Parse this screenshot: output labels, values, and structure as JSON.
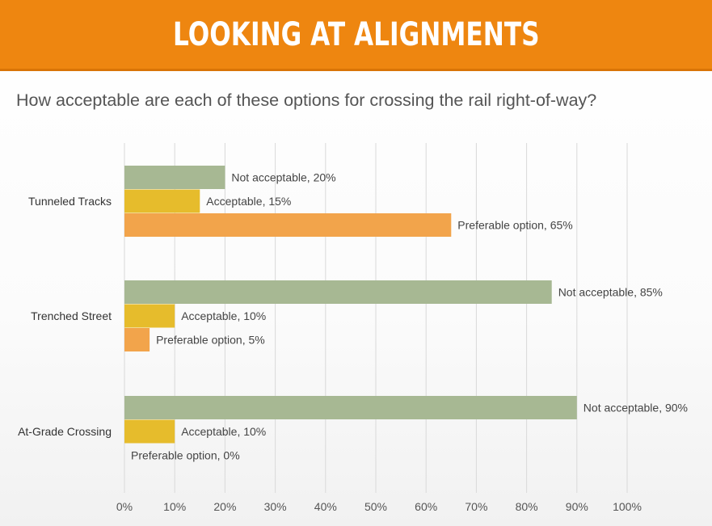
{
  "header": {
    "title": "LOOKING AT ALIGNMENTS"
  },
  "question": "How acceptable are each of these options for crossing the rail right-of-way?",
  "colors": {
    "banner": "#ee8610",
    "not_acceptable": "#a7b893",
    "acceptable": "#e6bc2c",
    "preferable": "#f2a44b",
    "grid": "#d9d9d9"
  },
  "chart_data": {
    "type": "bar",
    "orientation": "horizontal",
    "title": "How acceptable are each of these options for crossing the rail right-of-way?",
    "categories": [
      "Tunneled Tracks",
      "Trenched Street",
      "At-Grade Crossing"
    ],
    "series": [
      {
        "name": "Not acceptable",
        "values": [
          20,
          85,
          90
        ],
        "labels": [
          "Not acceptable, 20%",
          "Not acceptable, 85%",
          "Not acceptable, 90%"
        ]
      },
      {
        "name": "Acceptable",
        "values": [
          15,
          10,
          10
        ],
        "labels": [
          "Acceptable, 15%",
          "Acceptable, 10%",
          "Acceptable, 10%"
        ]
      },
      {
        "name": "Preferable option",
        "values": [
          65,
          5,
          0
        ],
        "labels": [
          "Preferable option, 65%",
          "Preferable option, 5%",
          "Preferable option, 0%"
        ]
      }
    ],
    "xlim": [
      0,
      100
    ],
    "xticks": [
      "0%",
      "10%",
      "20%",
      "30%",
      "40%",
      "50%",
      "60%",
      "70%",
      "80%",
      "90%",
      "100%"
    ],
    "grid": true,
    "legend": "none"
  }
}
